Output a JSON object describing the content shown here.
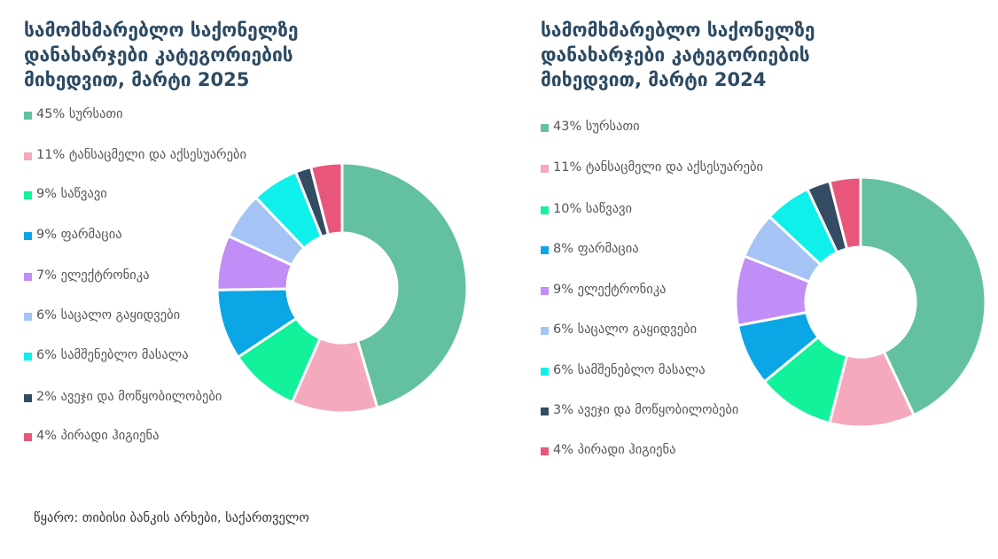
{
  "chart_data": [
    {
      "type": "pie",
      "title": "სამომხმარებლო საქონელზე დანახარჯები კატეგორიების მიხედვით, მარტი 2025",
      "legend_position": "left",
      "categories": [
        "სურსათი",
        "ტანსაცმელი და აქსესუარები",
        "საწვავი",
        "ფარმაცია",
        "ელექტრონიკა",
        "საცალო გაყიდვები",
        "სამშენებლო მასალა",
        "ავეჯი და მოწყობილობები",
        "პირადი ჰიგიენა"
      ],
      "values": [
        45,
        11,
        9,
        9,
        7,
        6,
        6,
        2,
        4
      ],
      "labels": [
        "45% სურსათი",
        "11% ტანსაცმელი და აქსესუარები",
        "9% საწვავი",
        "9% ფარმაცია",
        "7% ელექტრონიკა",
        "6% საცალო გაყიდვები",
        "6% სამშენებლო მასალა",
        "2% ავეჯი და მოწყობილობები",
        "4% პირადი ჰიგიენა"
      ],
      "colors": [
        "#63c19f",
        "#f4a9bc",
        "#12f29b",
        "#0ba6e6",
        "#c18df6",
        "#a5c4f5",
        "#10f0ea",
        "#334b63",
        "#e8577b"
      ],
      "donut": true
    },
    {
      "type": "pie",
      "title": "სამომხმარებლო საქონელზე დანახარჯები კატეგორიების მიხედვით, მარტი 2024",
      "legend_position": "left",
      "categories": [
        "სურსათი",
        "ტანსაცმელი და აქსესუარები",
        "საწვავი",
        "ფარმაცია",
        "ელექტრონიკა",
        "საცალო გაყიდვები",
        "სამშენებლო მასალა",
        "ავეჯი და მოწყობილობები",
        "პირადი ჰიგიენა"
      ],
      "values": [
        43,
        11,
        10,
        8,
        9,
        6,
        6,
        3,
        4
      ],
      "labels": [
        "43% სურსათი",
        "11% ტანსაცმელი და აქსესუარები",
        "10% საწვავი",
        "8% ფარმაცია",
        "9% ელექტრონიკა",
        "6% საცალო გაყიდვები",
        "6% სამშენებლო მასალა",
        "3% ავეჯი და მოწყობილობები",
        "4% პირადი ჰიგიენა"
      ],
      "colors": [
        "#63c19f",
        "#f4a9bc",
        "#12f29b",
        "#0ba6e6",
        "#c18df6",
        "#a5c4f5",
        "#10f0ea",
        "#334b63",
        "#e8577b"
      ],
      "donut": true
    }
  ],
  "source": "წყარო: თიბისი ბანკის არხები, საქართველო"
}
